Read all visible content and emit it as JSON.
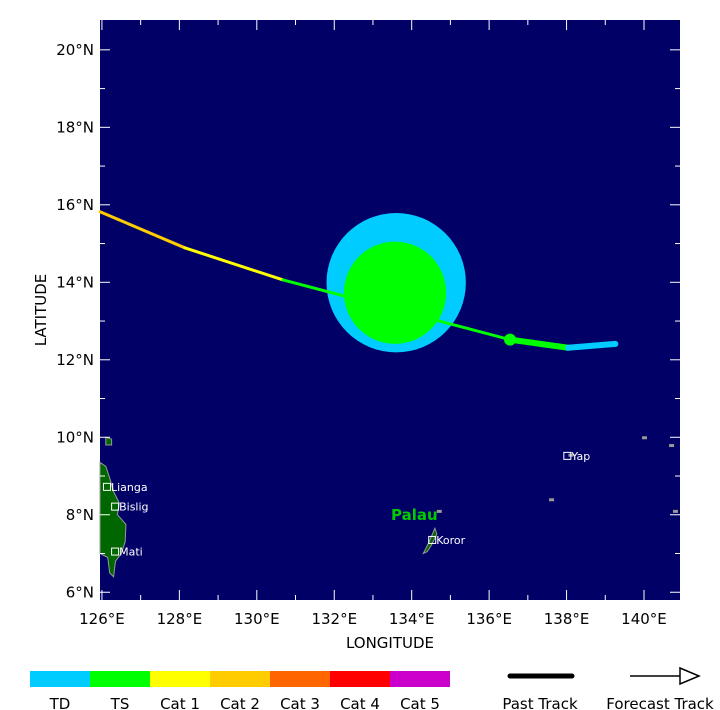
{
  "map": {
    "xlabel": "LONGITUDE",
    "ylabel": "LATITUDE",
    "lon_range": [
      125.95,
      140.93
    ],
    "lat_range": [
      5.8,
      20.77
    ],
    "lon_ticks": [
      {
        "v": 126,
        "label": "126°E"
      },
      {
        "v": 128,
        "label": "128°E"
      },
      {
        "v": 130,
        "label": "130°E"
      },
      {
        "v": 132,
        "label": "132°E"
      },
      {
        "v": 134,
        "label": "134°E"
      },
      {
        "v": 136,
        "label": "136°E"
      },
      {
        "v": 138,
        "label": "138°E"
      },
      {
        "v": 140,
        "label": "140°E"
      }
    ],
    "lat_ticks": [
      {
        "v": 6,
        "label": "6°N"
      },
      {
        "v": 8,
        "label": "8°N"
      },
      {
        "v": 10,
        "label": "10°N"
      },
      {
        "v": 12,
        "label": "12°N"
      },
      {
        "v": 14,
        "label": "14°N"
      },
      {
        "v": 16,
        "label": "16°N"
      },
      {
        "v": 18,
        "label": "18°N"
      },
      {
        "v": 20,
        "label": "20°N"
      }
    ],
    "ocean_color": "#000066",
    "land_color": "#006600",
    "region_label": "Palau",
    "cities": [
      {
        "name": "Lianga",
        "lon": 126.13,
        "lat": 8.72
      },
      {
        "name": "Bislig",
        "lon": 126.34,
        "lat": 8.21
      },
      {
        "name": "Mati",
        "lon": 126.34,
        "lat": 7.05
      },
      {
        "name": "Koror",
        "lon": 134.53,
        "lat": 7.35
      },
      {
        "name": "Yap",
        "lon": 138.02,
        "lat": 9.52
      }
    ],
    "track_segments": [
      {
        "from": [
          125.95,
          15.82
        ],
        "to": [
          128.14,
          14.89
        ],
        "category": "Cat 2",
        "type": "forecast"
      },
      {
        "from": [
          128.14,
          14.89
        ],
        "to": [
          130.68,
          14.06
        ],
        "category": "Cat 1",
        "type": "forecast"
      },
      {
        "from": [
          130.68,
          14.06
        ],
        "to": [
          136.54,
          12.52
        ],
        "category": "TS",
        "type": "forecast"
      },
      {
        "from": [
          136.54,
          12.52
        ],
        "to": [
          138.04,
          12.31
        ],
        "category": "TS",
        "type": "past"
      },
      {
        "from": [
          138.04,
          12.31
        ],
        "to": [
          139.26,
          12.41
        ],
        "category": "TD",
        "type": "past"
      }
    ],
    "current_position": {
      "lon": 136.54,
      "lat": 12.52,
      "category": "TS"
    },
    "wind_radii": [
      {
        "category": "TD",
        "lon": 133.6,
        "lat": 13.99,
        "radius_deg": 1.8
      },
      {
        "category": "TS",
        "lon": 133.57,
        "lat": 13.73,
        "radius_deg": 1.32
      }
    ]
  },
  "legend": {
    "categories": [
      {
        "label": "TD",
        "color": "#00ccff"
      },
      {
        "label": "TS",
        "color": "#00ff00"
      },
      {
        "label": "Cat 1",
        "color": "#ffff00"
      },
      {
        "label": "Cat 2",
        "color": "#ffcc00"
      },
      {
        "label": "Cat 3",
        "color": "#ff6600"
      },
      {
        "label": "Cat 4",
        "color": "#ff0000"
      },
      {
        "label": "Cat 5",
        "color": "#cc00cc"
      }
    ],
    "past_track_label": "Past Track",
    "forecast_track_label": "Forecast Track"
  }
}
